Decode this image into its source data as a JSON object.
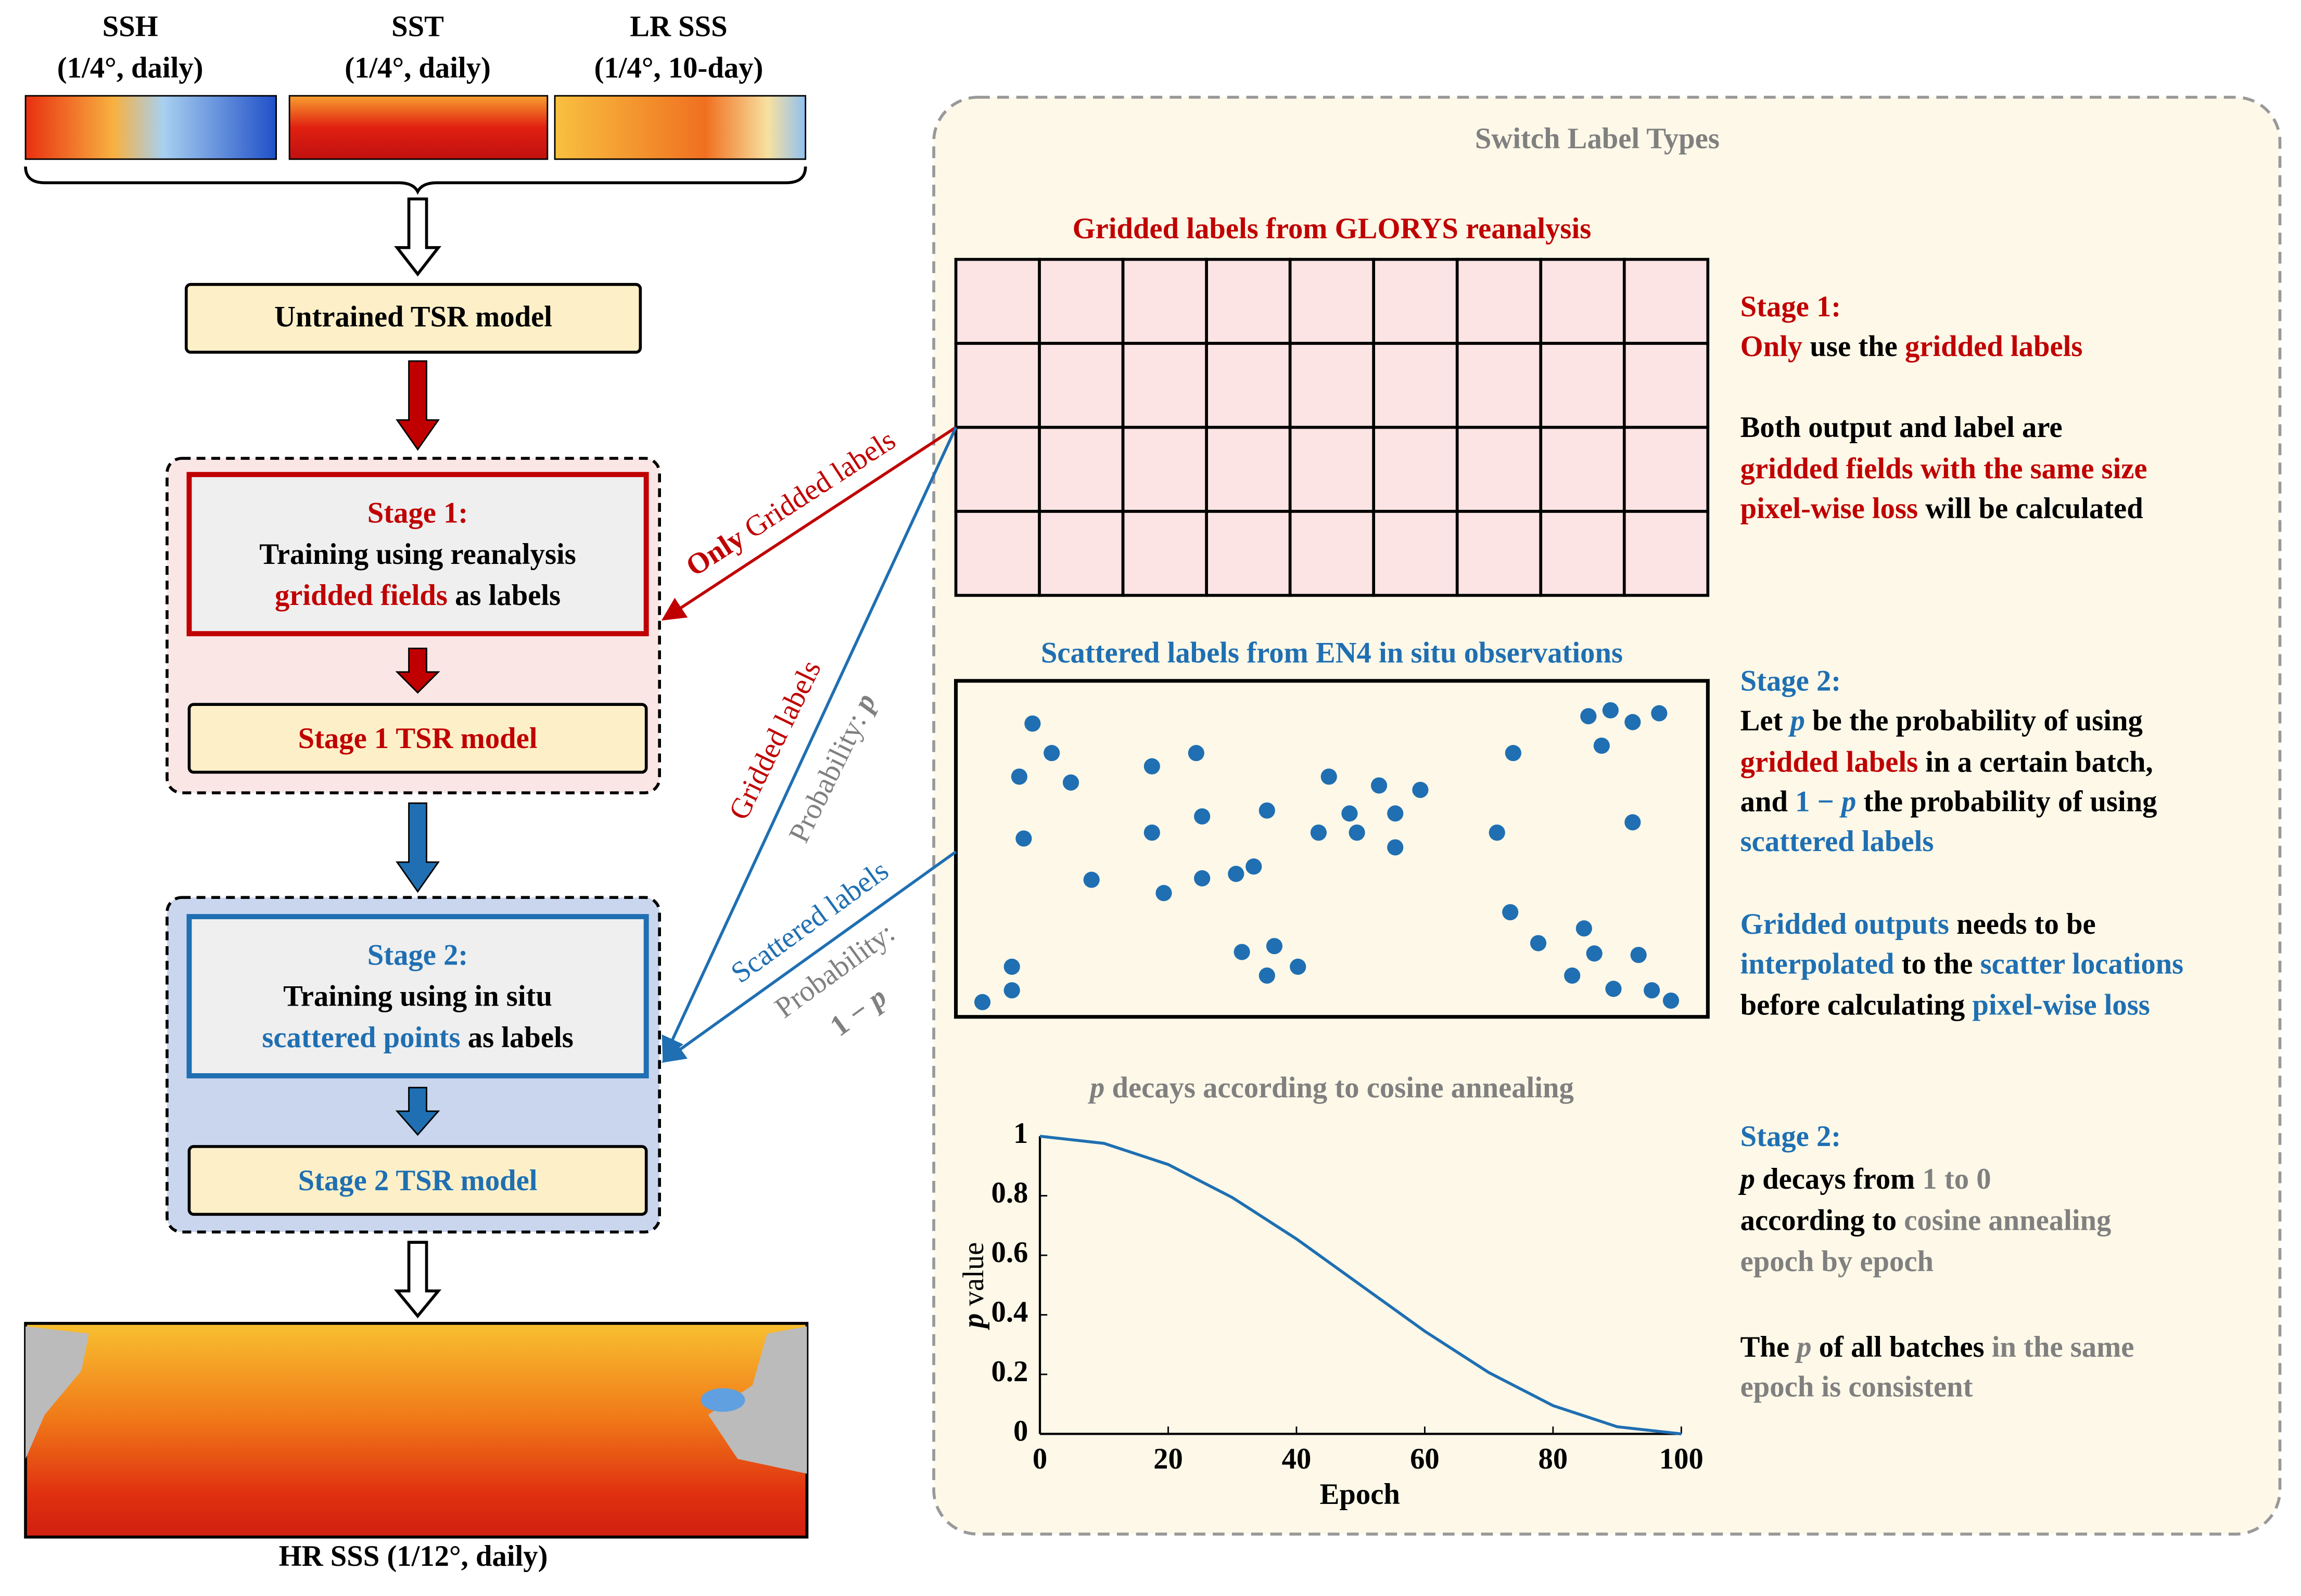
{
  "inputs": [
    {
      "name": "SSH",
      "resolution": "(1/4°, daily)"
    },
    {
      "name": "SST",
      "resolution": "(1/4°, daily)"
    },
    {
      "name": "LR SSS",
      "resolution": "(1/4°, 10-day)"
    }
  ],
  "untrained_model": "Untrained TSR model",
  "stage1": {
    "title": [
      {
        "text": "Stage 1:",
        "color": "#c00000"
      }
    ],
    "line1": "Training using reanalysis",
    "line2": [
      {
        "text": "gridded fields",
        "color": "#c00000"
      },
      {
        "text": " as labels",
        "color": "#000000"
      }
    ],
    "model": [
      {
        "text": "Stage 1 TSR model",
        "color": "#c00000"
      }
    ]
  },
  "stage2": {
    "title": [
      {
        "text": "Stage 2:",
        "color": "#1f6fb2"
      }
    ],
    "line1": "Training using in situ",
    "line2": [
      {
        "text": "scattered points",
        "color": "#1f6fb2"
      },
      {
        "text": " as labels",
        "color": "#000000"
      }
    ],
    "model": [
      {
        "text": "Stage 2 TSR model",
        "color": "#1f6fb2"
      }
    ]
  },
  "output": "HR SSS (1/12°, daily)",
  "arrows": {
    "only_gridded": [
      {
        "text": "Only",
        "color": "#c00000"
      },
      {
        "text": " Gridded labels",
        "color": "#c00000",
        "weight": "normal"
      }
    ],
    "gridded": [
      {
        "text": "Gridded labels",
        "color": "#c00000",
        "weight": "normal"
      }
    ],
    "prob_p": [
      {
        "text": "Probability: ",
        "color": "#808080",
        "weight": "normal"
      },
      {
        "text": "p",
        "color": "#808080",
        "style": "italic"
      }
    ],
    "scattered": [
      {
        "text": "Scattered labels",
        "color": "#1f6fb2",
        "weight": "normal"
      }
    ],
    "prob_1mp_label": [
      {
        "text": "Probability:",
        "color": "#808080",
        "weight": "normal"
      }
    ],
    "prob_1mp": [
      {
        "text": "1 − ",
        "color": "#808080"
      },
      {
        "text": "p",
        "color": "#808080",
        "style": "italic"
      }
    ]
  },
  "panel": {
    "title": [
      {
        "text": "Switch Label Types",
        "color": "#808080"
      }
    ],
    "gridded_title": [
      {
        "text": "Gridded labels from GLORYS reanalysis",
        "color": "#c00000"
      }
    ],
    "scattered_title": [
      {
        "text": "Scattered labels from EN4 in situ observations",
        "color": "#1f6fb2"
      }
    ],
    "curve_title": [
      {
        "text": "p",
        "color": "#808080",
        "style": "italic"
      },
      {
        "text": " decays according to cosine annealing",
        "color": "#808080"
      }
    ]
  },
  "notes": {
    "stage1": [
      [
        {
          "text": "Stage 1:",
          "color": "#c00000"
        }
      ],
      [
        {
          "text": "Only",
          "color": "#c00000"
        },
        {
          "text": " use the ",
          "color": "#000000"
        },
        {
          "text": "gridded labels",
          "color": "#c00000"
        }
      ],
      [
        {
          "text": "Both output and label are",
          "color": "#000000"
        }
      ],
      [
        {
          "text": "gridded fields with the same size",
          "color": "#c00000"
        }
      ],
      [
        {
          "text": "pixel-wise loss",
          "color": "#c00000"
        },
        {
          "text": " will be calculated",
          "color": "#000000"
        }
      ]
    ],
    "stage2": [
      [
        {
          "text": "Stage 2:",
          "color": "#1f6fb2"
        }
      ],
      [
        {
          "text": "Let ",
          "color": "#000000"
        },
        {
          "text": "p",
          "color": "#1f6fb2",
          "style": "italic"
        },
        {
          "text": " be the probability of using",
          "color": "#000000"
        }
      ],
      [
        {
          "text": "gridded labels",
          "color": "#c00000"
        },
        {
          "text": " in a certain batch,",
          "color": "#000000"
        }
      ],
      [
        {
          "text": "and ",
          "color": "#000000"
        },
        {
          "text": "1 − ",
          "color": "#1f6fb2"
        },
        {
          "text": "p",
          "color": "#1f6fb2",
          "style": "italic"
        },
        {
          "text": " the probability of using",
          "color": "#000000"
        }
      ],
      [
        {
          "text": "scattered labels",
          "color": "#1f6fb2"
        }
      ],
      [
        {
          "text": "Gridded outputs",
          "color": "#1f6fb2"
        },
        {
          "text": " needs to be",
          "color": "#000000"
        }
      ],
      [
        {
          "text": "interpolated",
          "color": "#1f6fb2"
        },
        {
          "text": " to the ",
          "color": "#000000"
        },
        {
          "text": "scatter locations",
          "color": "#1f6fb2"
        }
      ],
      [
        {
          "text": "before calculating ",
          "color": "#000000"
        },
        {
          "text": "pixel-wise loss",
          "color": "#1f6fb2"
        }
      ]
    ],
    "stage2_decay": [
      [
        {
          "text": "Stage 2:",
          "color": "#1f6fb2"
        }
      ],
      [
        {
          "text": "p",
          "color": "#000000",
          "style": "italic"
        },
        {
          "text": " decays from ",
          "color": "#000000"
        },
        {
          "text": "1 to 0",
          "color": "#808080"
        }
      ],
      [
        {
          "text": "according to ",
          "color": "#000000"
        },
        {
          "text": "cosine annealing",
          "color": "#808080"
        }
      ],
      [
        {
          "text": "epoch by epoch",
          "color": "#808080"
        }
      ],
      [
        {
          "text": "The ",
          "color": "#000000"
        },
        {
          "text": "p",
          "color": "#808080",
          "style": "italic"
        },
        {
          "text": " of all batches ",
          "color": "#000000"
        },
        {
          "text": "in the same",
          "color": "#808080"
        }
      ],
      [
        {
          "text": "epoch is consistent",
          "color": "#808080"
        }
      ]
    ]
  },
  "chart_data": {
    "type": "line",
    "xlabel": "Epoch",
    "ylabel": [
      {
        "text": "p",
        "color": "#000000",
        "style": "italic"
      },
      {
        "text": " value",
        "color": "#000000",
        "weight": "normal"
      }
    ],
    "x": [
      0,
      10,
      20,
      30,
      40,
      50,
      60,
      70,
      80,
      90,
      100
    ],
    "values": [
      1,
      0.976,
      0.905,
      0.794,
      0.655,
      0.5,
      0.345,
      0.206,
      0.095,
      0.024,
      0
    ],
    "color": "#1f6fb2",
    "xlim": [
      0,
      100
    ],
    "ylim": [
      0,
      1
    ],
    "xticks": [
      0,
      20,
      40,
      60,
      80,
      100
    ],
    "yticks": [
      0,
      0.2,
      0.4,
      0.6,
      0.8,
      1
    ]
  }
}
